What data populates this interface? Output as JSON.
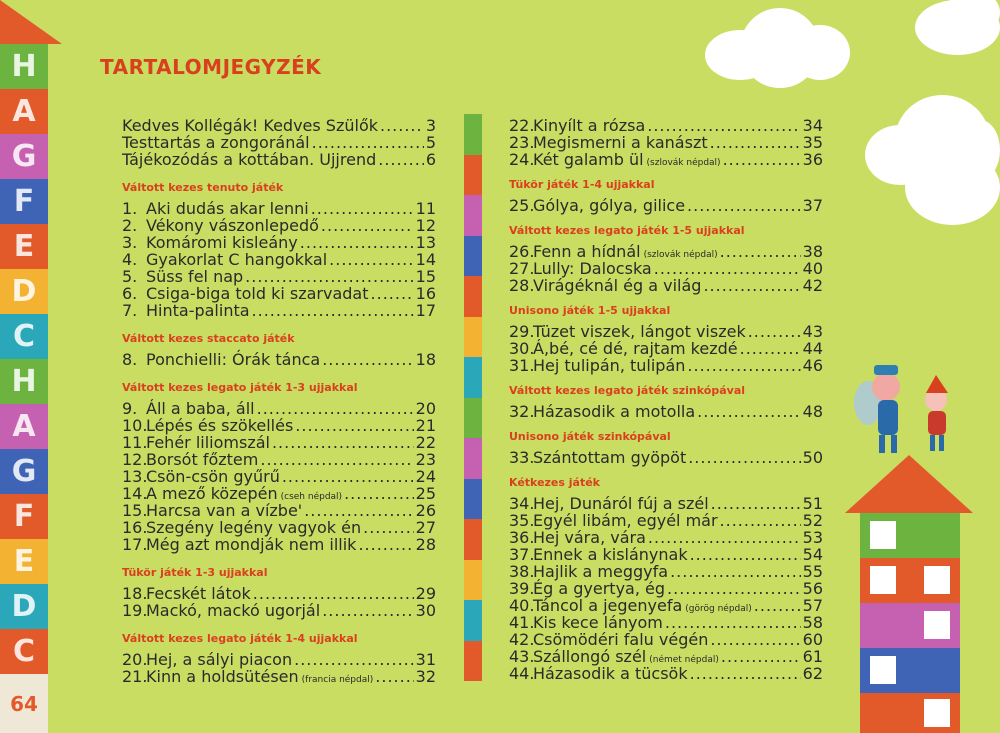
{
  "title": "TARTALOMJEGYZÉK",
  "page_number": "64",
  "side_letters": [
    "H",
    "A",
    "G",
    "F",
    "E",
    "D",
    "C",
    "H",
    "A",
    "G",
    "F",
    "E",
    "D",
    "C"
  ],
  "side_colors": [
    "#6db33f",
    "#e35a2a",
    "#c660b0",
    "#3f63b5",
    "#e35a2a",
    "#f3b232",
    "#2aa7b8",
    "#6db33f",
    "#c660b0",
    "#3f63b5",
    "#e35a2a",
    "#f3b232",
    "#2aa7b8",
    "#e35a2a"
  ],
  "stripe_colors": [
    "#6db33f",
    "#e35a2a",
    "#c660b0",
    "#3f63b5",
    "#e35a2a",
    "#f3b232",
    "#2aa7b8",
    "#6db33f",
    "#c660b0",
    "#3f63b5",
    "#e35a2a",
    "#f3b232",
    "#2aa7b8",
    "#e35a2a"
  ],
  "left_intro": [
    {
      "title": "Kedves Kollégák! Kedves Szülők",
      "page": "3"
    },
    {
      "title": "Testtartás a zongoránál",
      "page": "5"
    },
    {
      "title": "Tájékozódás a kottában. Ujjrend",
      "page": "6"
    }
  ],
  "left_sections": [
    {
      "heading": "Váltott kezes tenuto játék",
      "items": [
        {
          "num": "1.",
          "title": "Aki dudás akar lenni",
          "note": "",
          "page": "11"
        },
        {
          "num": "2.",
          "title": "Vékony vászonlepedő",
          "note": "",
          "page": "12"
        },
        {
          "num": "3.",
          "title": "Komáromi kisleány",
          "note": "",
          "page": "13"
        },
        {
          "num": "4.",
          "title": "Gyakorlat C hangokkal",
          "note": "",
          "page": "14"
        },
        {
          "num": "5.",
          "title": "Süss fel nap",
          "note": "",
          "page": "15"
        },
        {
          "num": "6.",
          "title": "Csiga-biga told ki szarvadat",
          "note": "",
          "page": "16"
        },
        {
          "num": "7.",
          "title": "Hinta-palinta",
          "note": "",
          "page": "17"
        }
      ]
    },
    {
      "heading": "Váltott kezes staccato játék",
      "items": [
        {
          "num": "8.",
          "title": "Ponchielli: Órák tánca",
          "note": "",
          "page": "18"
        }
      ]
    },
    {
      "heading": "Váltott kezes legato játék 1-3 ujjakkal",
      "items": [
        {
          "num": "9.",
          "title": "Áll a baba, áll",
          "note": "",
          "page": "20"
        },
        {
          "num": "10.",
          "title": "Lépés és szökellés",
          "note": "",
          "page": "21"
        },
        {
          "num": "11.",
          "title": "Fehér liliomszál",
          "note": "",
          "page": "22"
        },
        {
          "num": "12.",
          "title": "Borsót főztem",
          "note": "",
          "page": "23"
        },
        {
          "num": "13.",
          "title": "Csön-csön gyűrű",
          "note": "",
          "page": "24"
        },
        {
          "num": "14.",
          "title": "A mező közepén",
          "note": "(cseh népdal)",
          "page": "25"
        },
        {
          "num": "15.",
          "title": "Harcsa van a vízbe'",
          "note": "",
          "page": "26"
        },
        {
          "num": "16.",
          "title": "Szegény legény vagyok én",
          "note": "",
          "page": "27"
        },
        {
          "num": "17.",
          "title": "Még azt mondják nem illik",
          "note": "",
          "page": "28"
        }
      ]
    },
    {
      "heading": "Tükör játék  1-3 ujjakkal",
      "items": [
        {
          "num": "18.",
          "title": "Fecskét látok",
          "note": "",
          "page": "29"
        },
        {
          "num": "19.",
          "title": "Mackó, mackó ugorjál",
          "note": "",
          "page": "30"
        }
      ]
    },
    {
      "heading": "Váltott kezes legato játék 1-4 ujjakkal",
      "items": [
        {
          "num": "20.",
          "title": "Hej, a sályi piacon",
          "note": "",
          "page": "31"
        },
        {
          "num": "21.",
          "title": "Kinn a holdsütésen",
          "note": "(francia népdal)",
          "page": "32"
        }
      ]
    }
  ],
  "right_sections": [
    {
      "heading": "",
      "items": [
        {
          "num": "22.",
          "title": "Kinyílt a rózsa",
          "note": "",
          "page": "34"
        },
        {
          "num": "23.",
          "title": "Megismerni a kanászt",
          "note": "",
          "page": "35"
        },
        {
          "num": "24.",
          "title": "Két galamb ül",
          "note": "(szlovák népdal)",
          "page": "36"
        }
      ]
    },
    {
      "heading": "Tükör játék 1-4 ujjakkal",
      "items": [
        {
          "num": "25.",
          "title": "Gólya, gólya, gilice",
          "note": "",
          "page": "37"
        }
      ]
    },
    {
      "heading": "Váltott kezes legato játék 1-5 ujjakkal",
      "items": [
        {
          "num": "26.",
          "title": "Fenn a hídnál",
          "note": "(szlovák népdal)",
          "page": "38"
        },
        {
          "num": "27.",
          "title": "Lully: Dalocska",
          "note": "",
          "page": "40"
        },
        {
          "num": "28.",
          "title": "Virágéknál ég a világ",
          "note": "",
          "page": "42"
        }
      ]
    },
    {
      "heading": "Unisono játék 1-5 ujjakkal",
      "items": [
        {
          "num": "29.",
          "title": "Tüzet viszek, lángot viszek",
          "note": "",
          "page": "43"
        },
        {
          "num": "30.",
          "title": "Á,bé, cé dé, rajtam kezdé",
          "note": "",
          "page": "44"
        },
        {
          "num": "31.",
          "title": "Hej tulipán, tulipán",
          "note": "",
          "page": "46"
        }
      ]
    },
    {
      "heading": "Váltott kezes legato játék szinkópával",
      "items": [
        {
          "num": "32.",
          "title": "Házasodik a motolla",
          "note": "",
          "page": "48"
        }
      ]
    },
    {
      "heading": "Unisono játék szinkópával",
      "items": [
        {
          "num": "33.",
          "title": "Szántottam gyöpöt",
          "note": "",
          "page": "50"
        }
      ]
    },
    {
      "heading": "Kétkezes játék",
      "items": [
        {
          "num": "34.",
          "title": "Hej, Dunáról fúj a szél",
          "note": "",
          "page": "51"
        },
        {
          "num": "35.",
          "title": "Egyél libám, egyél már",
          "note": "",
          "page": "52"
        },
        {
          "num": "36.",
          "title": "Hej vára, vára",
          "note": "",
          "page": "53"
        },
        {
          "num": "37.",
          "title": "Ennek a kislánynak",
          "note": "",
          "page": "54"
        },
        {
          "num": "38.",
          "title": "Hajlik a meggyfa",
          "note": "",
          "page": "55"
        },
        {
          "num": "39.",
          "title": "Ég a gyertya, ég",
          "note": "",
          "page": "56"
        },
        {
          "num": "40.",
          "title": "Táncol a jegenyefa",
          "note": "(görög népdal)",
          "page": "57"
        },
        {
          "num": "41.",
          "title": "Kis kece lányom",
          "note": "",
          "page": "58"
        },
        {
          "num": "42.",
          "title": "Csömödéri falu végén",
          "note": "",
          "page": "60"
        },
        {
          "num": "43.",
          "title": "Szállongó szél",
          "note": "(német népdal)",
          "page": "61"
        },
        {
          "num": "44.",
          "title": "Házasodik a tücsök",
          "note": "",
          "page": "62"
        }
      ]
    }
  ]
}
